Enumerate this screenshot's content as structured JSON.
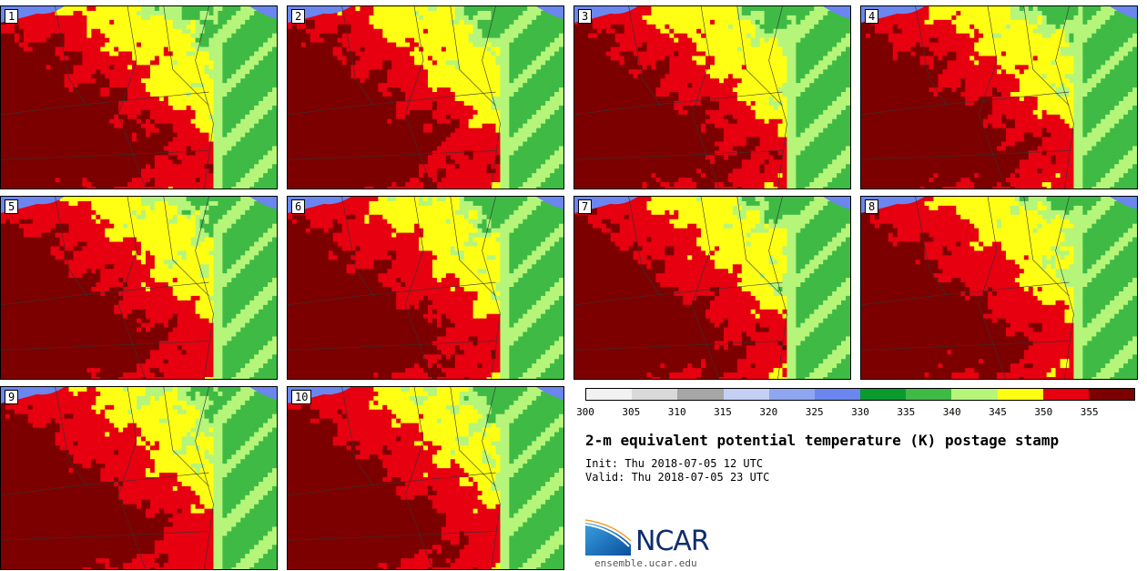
{
  "panels": [
    {
      "label": "1"
    },
    {
      "label": "2"
    },
    {
      "label": "3"
    },
    {
      "label": "4"
    },
    {
      "label": "5"
    },
    {
      "label": "6"
    },
    {
      "label": "7"
    },
    {
      "label": "8"
    },
    {
      "label": "9"
    },
    {
      "label": "10"
    }
  ],
  "colorbar": {
    "ticks": [
      "300",
      "305",
      "310",
      "315",
      "320",
      "325",
      "330",
      "335",
      "340",
      "345",
      "350",
      "355"
    ],
    "colors": [
      "#f2f2f2",
      "#d9d9d9",
      "#a6a6a6",
      "#c3cff5",
      "#8fa6f0",
      "#6b86ee",
      "#0a9a2e",
      "#3fba45",
      "#b5f57a",
      "#ffff14",
      "#e60010",
      "#7d0000"
    ],
    "range": [
      300,
      360
    ],
    "interval": 5
  },
  "chart_data": {
    "type": "heatmap",
    "title": "2-m equivalent potential temperature (K) postage stamp",
    "variable": "2-m equivalent potential temperature",
    "units": "K",
    "members": [
      "1",
      "2",
      "3",
      "4",
      "5",
      "6",
      "7",
      "8",
      "9",
      "10"
    ],
    "levels": [
      300,
      305,
      310,
      315,
      320,
      325,
      330,
      335,
      340,
      345,
      350,
      355
    ],
    "init": "Init: Thu 2018-07-05 12 UTC",
    "valid": "Valid: Thu 2018-07-05 23 UTC"
  },
  "branding": {
    "logo_text": "NCAR",
    "url": "ensemble.ucar.edu"
  }
}
